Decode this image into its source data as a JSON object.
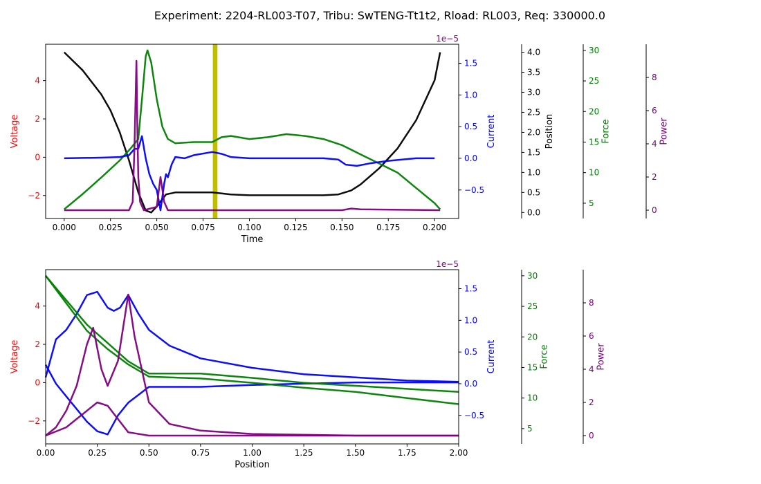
{
  "figure": {
    "title": "Experiment: 2204-RL003-T07, Tribu: SwTENG-Tt1t2, Rload: RL003, Req: 330000.0"
  },
  "colors": {
    "voltage": "#ff0000",
    "current": "#0000ff",
    "position": "#000000",
    "force": "#008000",
    "power": "#800080",
    "marker": "#bfbf00"
  },
  "chart_data": [
    {
      "type": "line",
      "title": "",
      "xlabel": "Time",
      "xlim": [
        -0.01,
        0.213
      ],
      "xticks": [
        "0.000",
        "0.025",
        "0.050",
        "0.075",
        "0.100",
        "0.125",
        "0.150",
        "0.175",
        "0.200"
      ],
      "marker_band": {
        "x_center": 0.0815,
        "width": 0.0025
      },
      "axes": {
        "voltage": {
          "label": "Voltage",
          "lim": [
            -3.2,
            5.9
          ],
          "ticks": [
            "−2",
            "0",
            "2",
            "4"
          ]
        },
        "current": {
          "label": "Current",
          "exponent_label": "1e−5",
          "lim": [
            -0.95,
            1.8
          ],
          "ticks": [
            "−0.5",
            "0.0",
            "0.5",
            "1.0",
            "1.5"
          ]
        },
        "position": {
          "label": "Position",
          "lim": [
            -0.15,
            4.2
          ],
          "ticks": [
            "0.0",
            "0.5",
            "1.0",
            "1.5",
            "2.0",
            "2.5",
            "3.0",
            "3.5",
            "4.0"
          ]
        },
        "force": {
          "label": "Force",
          "lim": [
            2.5,
            31.0
          ],
          "ticks": [
            "5",
            "10",
            "15",
            "20",
            "25",
            "30"
          ]
        },
        "power": {
          "label": "Power",
          "lim": [
            -0.5,
            10.0
          ],
          "ticks": [
            "0",
            "2",
            "4",
            "6",
            "8"
          ]
        }
      },
      "series": [
        {
          "axis": "position",
          "values": [
            [
              0,
              4.0
            ],
            [
              0.01,
              3.55
            ],
            [
              0.02,
              2.95
            ],
            [
              0.025,
              2.55
            ],
            [
              0.03,
              2.0
            ],
            [
              0.035,
              1.3
            ],
            [
              0.04,
              0.5
            ],
            [
              0.044,
              0.05
            ],
            [
              0.047,
              0.0
            ],
            [
              0.05,
              0.15
            ],
            [
              0.055,
              0.45
            ],
            [
              0.06,
              0.5
            ],
            [
              0.07,
              0.5
            ],
            [
              0.08,
              0.5
            ],
            [
              0.09,
              0.45
            ],
            [
              0.1,
              0.43
            ],
            [
              0.12,
              0.43
            ],
            [
              0.14,
              0.43
            ],
            [
              0.148,
              0.45
            ],
            [
              0.155,
              0.55
            ],
            [
              0.16,
              0.7
            ],
            [
              0.17,
              1.1
            ],
            [
              0.18,
              1.6
            ],
            [
              0.19,
              2.3
            ],
            [
              0.2,
              3.3
            ],
            [
              0.203,
              4.0
            ]
          ]
        },
        {
          "axis": "force",
          "values": [
            [
              0,
              4.0
            ],
            [
              0.01,
              6.5
            ],
            [
              0.02,
              9.2
            ],
            [
              0.03,
              12.0
            ],
            [
              0.036,
              14.0
            ],
            [
              0.04,
              15.5
            ],
            [
              0.042,
              22.0
            ],
            [
              0.044,
              29.0
            ],
            [
              0.045,
              30.0
            ],
            [
              0.047,
              28.0
            ],
            [
              0.05,
              22.0
            ],
            [
              0.053,
              17.5
            ],
            [
              0.056,
              15.5
            ],
            [
              0.06,
              14.8
            ],
            [
              0.07,
              15.0
            ],
            [
              0.08,
              15.0
            ],
            [
              0.085,
              15.8
            ],
            [
              0.09,
              16.0
            ],
            [
              0.1,
              15.5
            ],
            [
              0.11,
              15.8
            ],
            [
              0.12,
              16.3
            ],
            [
              0.13,
              16.0
            ],
            [
              0.14,
              15.5
            ],
            [
              0.15,
              14.5
            ],
            [
              0.16,
              13.0
            ],
            [
              0.17,
              11.5
            ],
            [
              0.18,
              10.0
            ],
            [
              0.19,
              7.5
            ],
            [
              0.2,
              5.0
            ],
            [
              0.203,
              4.0
            ]
          ]
        },
        {
          "axis": "current",
          "values": [
            [
              0,
              0.0
            ],
            [
              0.02,
              0.01
            ],
            [
              0.03,
              0.02
            ],
            [
              0.035,
              0.05
            ],
            [
              0.038,
              0.15
            ],
            [
              0.04,
              0.15
            ],
            [
              0.042,
              0.35
            ],
            [
              0.044,
              0.0
            ],
            [
              0.046,
              -0.25
            ],
            [
              0.048,
              -0.4
            ],
            [
              0.05,
              -0.5
            ],
            [
              0.052,
              -0.82
            ],
            [
              0.054,
              -0.4
            ],
            [
              0.055,
              -0.25
            ],
            [
              0.056,
              -0.3
            ],
            [
              0.058,
              -0.1
            ],
            [
              0.06,
              0.02
            ],
            [
              0.065,
              0.0
            ],
            [
              0.07,
              0.05
            ],
            [
              0.08,
              0.1
            ],
            [
              0.085,
              0.07
            ],
            [
              0.09,
              0.02
            ],
            [
              0.1,
              0.0
            ],
            [
              0.12,
              0.0
            ],
            [
              0.14,
              0.0
            ],
            [
              0.148,
              -0.02
            ],
            [
              0.152,
              -0.1
            ],
            [
              0.158,
              -0.12
            ],
            [
              0.165,
              -0.08
            ],
            [
              0.175,
              -0.04
            ],
            [
              0.19,
              0.0
            ],
            [
              0.2,
              0.0
            ]
          ]
        },
        {
          "axis": "power",
          "values": [
            [
              0,
              0.0
            ],
            [
              0.035,
              0.0
            ],
            [
              0.037,
              0.5
            ],
            [
              0.038,
              4.0
            ],
            [
              0.039,
              9.0
            ],
            [
              0.0395,
              5.0
            ],
            [
              0.04,
              2.0
            ],
            [
              0.041,
              0.5
            ],
            [
              0.043,
              0.0
            ],
            [
              0.05,
              0.2
            ],
            [
              0.052,
              2.0
            ],
            [
              0.054,
              0.5
            ],
            [
              0.056,
              0.0
            ],
            [
              0.08,
              0.0
            ],
            [
              0.1,
              0.0
            ],
            [
              0.15,
              0.0
            ],
            [
              0.155,
              0.1
            ],
            [
              0.16,
              0.05
            ],
            [
              0.203,
              0.0
            ]
          ]
        }
      ]
    },
    {
      "type": "line",
      "title": "",
      "xlabel": "Position",
      "xlim": [
        0.0,
        2.0
      ],
      "xticks": [
        "0.00",
        "0.25",
        "0.50",
        "0.75",
        "1.00",
        "1.25",
        "1.50",
        "1.75",
        "2.00"
      ],
      "axes": {
        "voltage": {
          "label": "Voltage",
          "lim": [
            -3.2,
            5.9
          ],
          "ticks": [
            "−2",
            "0",
            "2",
            "4"
          ]
        },
        "current": {
          "label": "Current",
          "exponent_label": "1e−5",
          "lim": [
            -0.95,
            1.8
          ],
          "ticks": [
            "−0.5",
            "0.0",
            "0.5",
            "1.0",
            "1.5"
          ]
        },
        "force": {
          "label": "Force",
          "lim": [
            2.5,
            31.0
          ],
          "ticks": [
            "5",
            "10",
            "15",
            "20",
            "25",
            "30"
          ]
        },
        "power": {
          "label": "Power",
          "lim": [
            -0.5,
            10.0
          ],
          "ticks": [
            "0",
            "2",
            "4",
            "6",
            "8"
          ]
        }
      },
      "series": [
        {
          "axis": "current",
          "values": [
            [
              0,
              0.1
            ],
            [
              0.05,
              0.7
            ],
            [
              0.1,
              0.85
            ],
            [
              0.15,
              1.1
            ],
            [
              0.2,
              1.4
            ],
            [
              0.25,
              1.45
            ],
            [
              0.3,
              1.2
            ],
            [
              0.33,
              1.15
            ],
            [
              0.36,
              1.2
            ],
            [
              0.4,
              1.4
            ],
            [
              0.45,
              1.1
            ],
            [
              0.5,
              0.85
            ],
            [
              0.6,
              0.6
            ],
            [
              0.75,
              0.4
            ],
            [
              1.0,
              0.25
            ],
            [
              1.25,
              0.15
            ],
            [
              1.5,
              0.1
            ],
            [
              1.75,
              0.05
            ],
            [
              2.0,
              0.03
            ]
          ]
        },
        {
          "axis": "current",
          "values": [
            [
              0,
              0.3
            ],
            [
              0.05,
              0.0
            ],
            [
              0.1,
              -0.2
            ],
            [
              0.15,
              -0.4
            ],
            [
              0.2,
              -0.6
            ],
            [
              0.25,
              -0.75
            ],
            [
              0.3,
              -0.8
            ],
            [
              0.35,
              -0.5
            ],
            [
              0.4,
              -0.3
            ],
            [
              0.5,
              -0.05
            ],
            [
              0.75,
              -0.05
            ],
            [
              1.0,
              -0.02
            ],
            [
              1.25,
              0.0
            ],
            [
              1.5,
              0.02
            ],
            [
              1.75,
              0.02
            ],
            [
              2.0,
              0.02
            ]
          ]
        },
        {
          "axis": "force",
          "values": [
            [
              0,
              30.0
            ],
            [
              0.1,
              25.5
            ],
            [
              0.2,
              21.0
            ],
            [
              0.3,
              18.0
            ],
            [
              0.4,
              15.5
            ],
            [
              0.5,
              13.5
            ],
            [
              0.75,
              13.2
            ],
            [
              1.0,
              12.5
            ],
            [
              1.25,
              11.7
            ],
            [
              1.5,
              11.0
            ],
            [
              1.75,
              10.0
            ],
            [
              2.0,
              9.0
            ]
          ]
        },
        {
          "axis": "force",
          "values": [
            [
              0,
              30.0
            ],
            [
              0.1,
              26.0
            ],
            [
              0.2,
              22.0
            ],
            [
              0.3,
              19.0
            ],
            [
              0.4,
              16.0
            ],
            [
              0.5,
              14.0
            ],
            [
              0.75,
              14.0
            ],
            [
              1.0,
              13.3
            ],
            [
              1.25,
              12.5
            ],
            [
              1.5,
              12.0
            ],
            [
              1.75,
              11.5
            ],
            [
              2.0,
              11.0
            ]
          ]
        },
        {
          "axis": "power",
          "values": [
            [
              0,
              0.0
            ],
            [
              0.05,
              0.5
            ],
            [
              0.1,
              1.5
            ],
            [
              0.15,
              3.0
            ],
            [
              0.2,
              5.5
            ],
            [
              0.23,
              6.5
            ],
            [
              0.27,
              4.0
            ],
            [
              0.3,
              3.0
            ],
            [
              0.35,
              4.5
            ],
            [
              0.4,
              8.5
            ],
            [
              0.43,
              6.0
            ],
            [
              0.5,
              2.0
            ],
            [
              0.6,
              0.7
            ],
            [
              0.75,
              0.3
            ],
            [
              1.0,
              0.1
            ],
            [
              1.5,
              0.0
            ],
            [
              2.0,
              0.0
            ]
          ]
        },
        {
          "axis": "power",
          "values": [
            [
              0,
              0.0
            ],
            [
              0.1,
              0.5
            ],
            [
              0.2,
              1.5
            ],
            [
              0.25,
              2.0
            ],
            [
              0.3,
              1.8
            ],
            [
              0.35,
              1.0
            ],
            [
              0.4,
              0.2
            ],
            [
              0.5,
              0.0
            ],
            [
              1.0,
              0.0
            ],
            [
              2.0,
              0.0
            ]
          ]
        }
      ]
    }
  ]
}
